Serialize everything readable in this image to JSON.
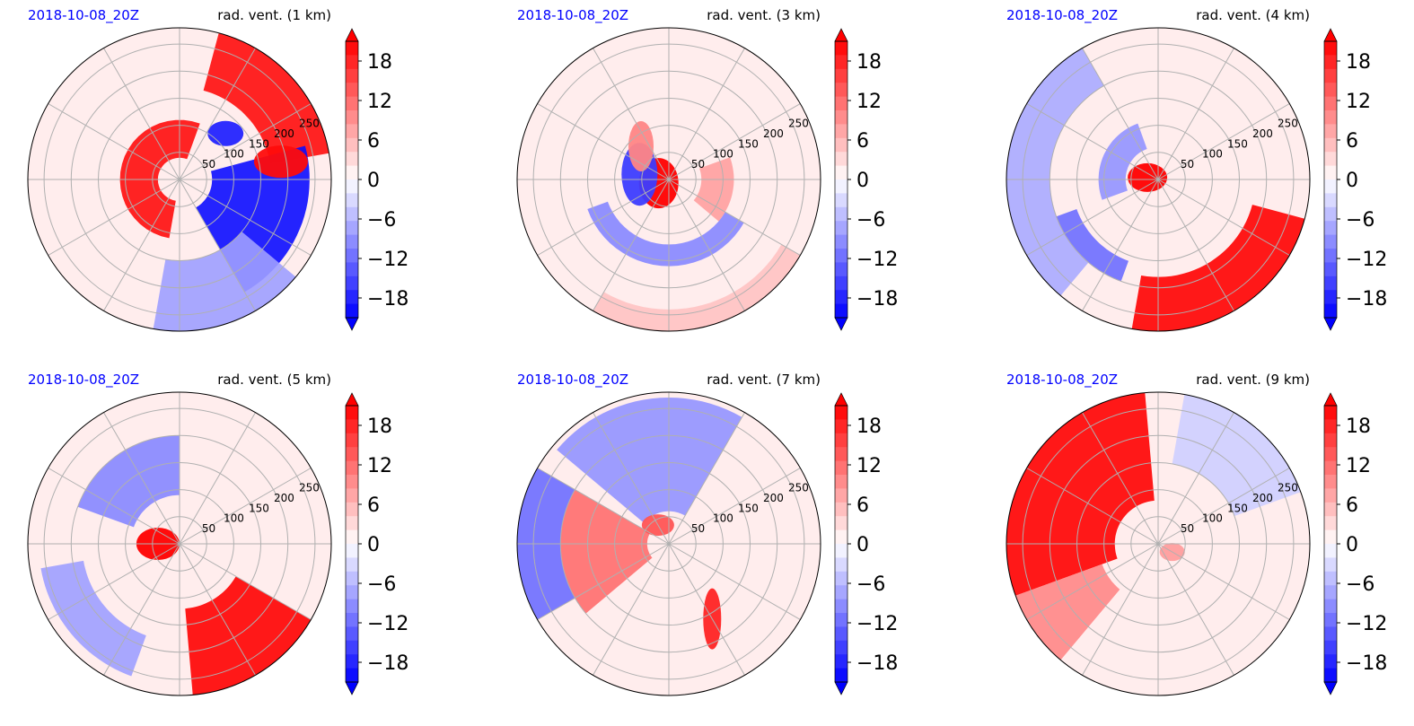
{
  "colors": {
    "negative_max": "#0000ff",
    "neutral": "#ffffff",
    "positive_max": "#ff0000",
    "date_label": "#0000ff",
    "grid": "#b0b0b0"
  },
  "chart_data": [
    {
      "type": "heatmap",
      "projection": "polar",
      "date_label": "2018-10-08_20Z",
      "title": "rad. vent. (1 km)",
      "radial_ticks": [
        "50",
        "100",
        "150",
        "200",
        "250"
      ],
      "colorbar": {
        "ticks": [
          "18",
          "12",
          "6",
          "0",
          "−6",
          "−12",
          "−18"
        ],
        "range": [
          -21,
          21
        ],
        "extend": "both",
        "cmap": "bwr"
      },
      "features": [
        {
          "kind": "band",
          "r0": 40,
          "r1": 110,
          "a0": 70,
          "a1": 260,
          "value": 20
        },
        {
          "kind": "band",
          "r0": 170,
          "r1": 280,
          "a0": 10,
          "a1": 75,
          "value": 20
        },
        {
          "kind": "band",
          "r0": 60,
          "r1": 240,
          "a0": -60,
          "a1": 15,
          "value": -20
        },
        {
          "kind": "band",
          "r0": 150,
          "r1": 280,
          "a0": -100,
          "a1": -40,
          "value": -8
        },
        {
          "kind": "blob",
          "r": 190,
          "a": 10,
          "rx": 30,
          "ry": 18,
          "value": 20
        },
        {
          "kind": "blob",
          "r": 120,
          "a": 45,
          "rx": 20,
          "ry": 14,
          "value": -18
        }
      ]
    },
    {
      "type": "heatmap",
      "projection": "polar",
      "date_label": "2018-10-08_20Z",
      "title": "rad. vent. (3 km)",
      "radial_ticks": [
        "50",
        "100",
        "150",
        "200",
        "250"
      ],
      "colorbar": {
        "ticks": [
          "18",
          "12",
          "6",
          "0",
          "−6",
          "−12",
          "−18"
        ],
        "range": [
          -21,
          21
        ],
        "extend": "both",
        "cmap": "bwr"
      },
      "features": [
        {
          "kind": "blob",
          "r": 20,
          "a": 200,
          "rx": 22,
          "ry": 28,
          "value": 21
        },
        {
          "kind": "blob",
          "r": 55,
          "a": 170,
          "rx": 20,
          "ry": 35,
          "value": -16
        },
        {
          "kind": "band",
          "r0": 120,
          "r1": 160,
          "a0": 200,
          "a1": 330,
          "value": -10
        },
        {
          "kind": "band",
          "r0": 60,
          "r1": 120,
          "a0": -40,
          "a1": 20,
          "value": 8
        },
        {
          "kind": "band",
          "r0": 240,
          "r1": 280,
          "a0": 240,
          "a1": 330,
          "value": 5
        },
        {
          "kind": "blob",
          "r": 80,
          "a": 130,
          "rx": 14,
          "ry": 28,
          "value": 10
        }
      ]
    },
    {
      "type": "heatmap",
      "projection": "polar",
      "date_label": "2018-10-08_20Z",
      "title": "rad. vent. (4 km)",
      "radial_ticks": [
        "50",
        "100",
        "150",
        "200",
        "250"
      ],
      "colorbar": {
        "ticks": [
          "18",
          "12",
          "6",
          "0",
          "−6",
          "−12",
          "−18"
        ],
        "range": [
          -21,
          21
        ],
        "extend": "both",
        "cmap": "bwr"
      },
      "features": [
        {
          "kind": "blob",
          "r": 20,
          "a": 170,
          "rx": 22,
          "ry": 16,
          "value": 21
        },
        {
          "kind": "band",
          "r0": 180,
          "r1": 280,
          "a0": 260,
          "a1": 345,
          "value": 21
        },
        {
          "kind": "band",
          "r0": 200,
          "r1": 280,
          "a0": 120,
          "a1": 230,
          "value": -7
        },
        {
          "kind": "band",
          "r0": 60,
          "r1": 110,
          "a0": 110,
          "a1": 200,
          "value": -9
        },
        {
          "kind": "band",
          "r0": 160,
          "r1": 200,
          "a0": 200,
          "a1": 250,
          "value": -12
        }
      ]
    },
    {
      "type": "heatmap",
      "projection": "polar",
      "date_label": "2018-10-08_20Z",
      "title": "rad. vent. (5 km)",
      "radial_ticks": [
        "50",
        "100",
        "150",
        "200",
        "250"
      ],
      "colorbar": {
        "ticks": [
          "18",
          "12",
          "6",
          "0",
          "−6",
          "−12",
          "−18"
        ],
        "range": [
          -21,
          21
        ],
        "extend": "both",
        "cmap": "bwr"
      },
      "features": [
        {
          "kind": "blob",
          "r": 40,
          "a": 180,
          "rx": 24,
          "ry": 18,
          "value": 21
        },
        {
          "kind": "band",
          "r0": 120,
          "r1": 280,
          "a0": 275,
          "a1": 330,
          "value": 21
        },
        {
          "kind": "band",
          "r0": 90,
          "r1": 200,
          "a0": 90,
          "a1": 160,
          "value": -10
        },
        {
          "kind": "band",
          "r0": 180,
          "r1": 260,
          "a0": 190,
          "a1": 250,
          "value": -8
        }
      ]
    },
    {
      "type": "heatmap",
      "projection": "polar",
      "date_label": "2018-10-08_20Z",
      "title": "rad. vent. (7 km)",
      "radial_ticks": [
        "50",
        "100",
        "150",
        "200",
        "250"
      ],
      "colorbar": {
        "ticks": [
          "18",
          "12",
          "6",
          "0",
          "−6",
          "−12",
          "−18"
        ],
        "range": [
          -21,
          21
        ],
        "extend": "both",
        "cmap": "bwr"
      },
      "features": [
        {
          "kind": "band",
          "r0": 40,
          "r1": 200,
          "a0": 150,
          "a1": 220,
          "value": 12
        },
        {
          "kind": "band",
          "r0": 60,
          "r1": 270,
          "a0": 60,
          "a1": 140,
          "value": -9
        },
        {
          "kind": "band",
          "r0": 200,
          "r1": 280,
          "a0": 150,
          "a1": 210,
          "value": -12
        },
        {
          "kind": "blob",
          "r": 160,
          "a": 300,
          "rx": 10,
          "ry": 34,
          "value": 18
        },
        {
          "kind": "blob",
          "r": 40,
          "a": 120,
          "rx": 18,
          "ry": 12,
          "value": 14
        }
      ]
    },
    {
      "type": "heatmap",
      "projection": "polar",
      "date_label": "2018-10-08_20Z",
      "title": "rad. vent. (9 km)",
      "radial_ticks": [
        "50",
        "100",
        "150",
        "200",
        "250"
      ],
      "colorbar": {
        "ticks": [
          "18",
          "12",
          "6",
          "0",
          "−6",
          "−12",
          "−18"
        ],
        "range": [
          -21,
          21
        ],
        "extend": "both",
        "cmap": "bwr"
      },
      "features": [
        {
          "kind": "band",
          "r0": 80,
          "r1": 280,
          "a0": 95,
          "a1": 200,
          "value": 21
        },
        {
          "kind": "band",
          "r0": 110,
          "r1": 280,
          "a0": 200,
          "a1": 230,
          "value": 10
        },
        {
          "kind": "band",
          "r0": 150,
          "r1": 280,
          "a0": 20,
          "a1": 80,
          "value": -4
        },
        {
          "kind": "blob",
          "r": 30,
          "a": 330,
          "rx": 14,
          "ry": 10,
          "value": 8
        }
      ]
    }
  ]
}
